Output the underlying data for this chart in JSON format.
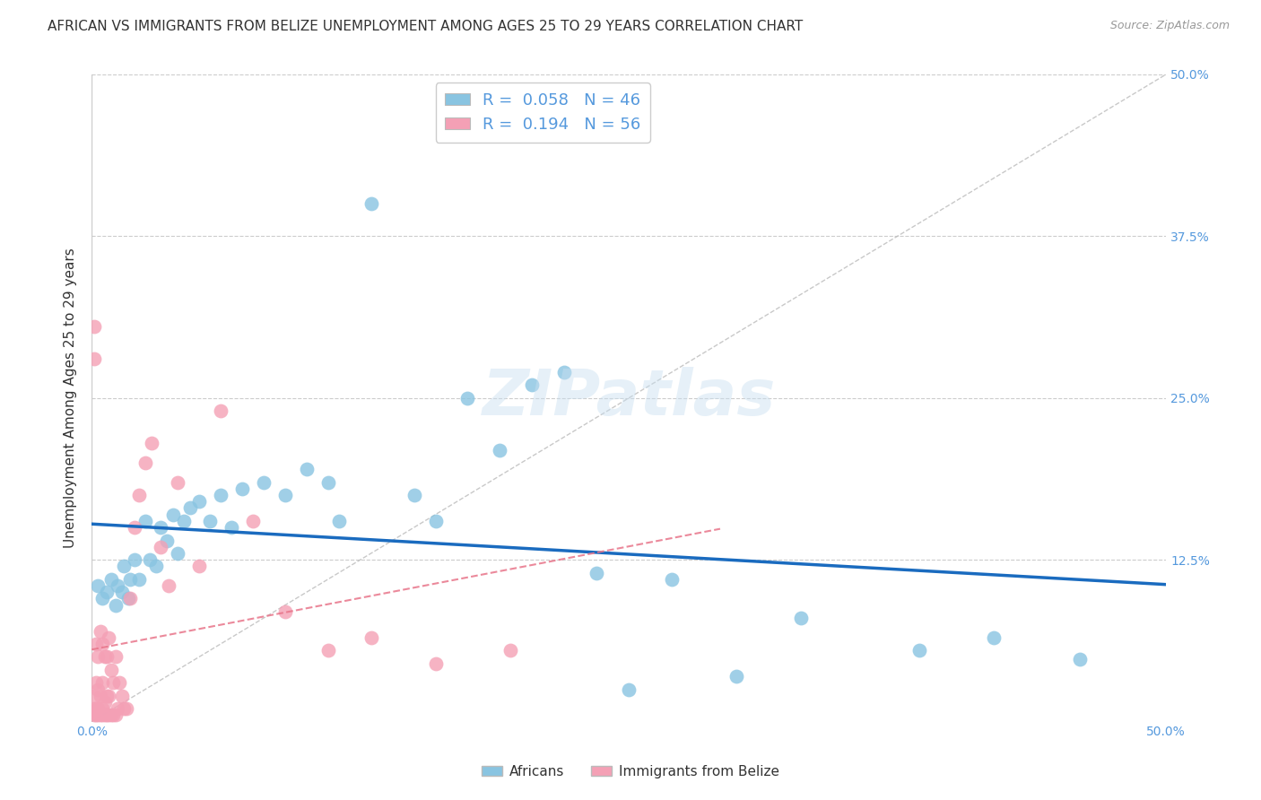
{
  "title": "AFRICAN VS IMMIGRANTS FROM BELIZE UNEMPLOYMENT AMONG AGES 25 TO 29 YEARS CORRELATION CHART",
  "source": "Source: ZipAtlas.com",
  "ylabel": "Unemployment Among Ages 25 to 29 years",
  "xmin": 0.0,
  "xmax": 0.5,
  "ymin": 0.0,
  "ymax": 0.5,
  "ytick_labels_right": [
    "12.5%",
    "25.0%",
    "37.5%",
    "50.0%"
  ],
  "ytick_vals_right": [
    0.125,
    0.25,
    0.375,
    0.5
  ],
  "legend_label1": "Africans",
  "legend_label2": "Immigrants from Belize",
  "legend_R1": "R =  0.058",
  "legend_N1": "N = 46",
  "legend_R2": "R =  0.194",
  "legend_N2": "N = 56",
  "color_africans": "#89c4e1",
  "color_belize": "#f4a0b5",
  "color_africans_line": "#1a6bbf",
  "color_belize_line": "#e8758a",
  "background_color": "#ffffff",
  "grid_color": "#cccccc",
  "title_fontsize": 11,
  "axis_label_fontsize": 11,
  "tick_fontsize": 10,
  "africans_x": [
    0.003,
    0.005,
    0.007,
    0.009,
    0.011,
    0.012,
    0.014,
    0.015,
    0.017,
    0.018,
    0.02,
    0.022,
    0.025,
    0.027,
    0.03,
    0.032,
    0.035,
    0.038,
    0.04,
    0.043,
    0.046,
    0.05,
    0.055,
    0.06,
    0.065,
    0.07,
    0.08,
    0.09,
    0.1,
    0.11,
    0.115,
    0.13,
    0.15,
    0.16,
    0.175,
    0.19,
    0.205,
    0.22,
    0.235,
    0.25,
    0.27,
    0.3,
    0.33,
    0.385,
    0.42,
    0.46
  ],
  "africans_y": [
    0.105,
    0.095,
    0.1,
    0.11,
    0.09,
    0.105,
    0.1,
    0.12,
    0.095,
    0.11,
    0.125,
    0.11,
    0.155,
    0.125,
    0.12,
    0.15,
    0.14,
    0.16,
    0.13,
    0.155,
    0.165,
    0.17,
    0.155,
    0.175,
    0.15,
    0.18,
    0.185,
    0.175,
    0.195,
    0.185,
    0.155,
    0.4,
    0.175,
    0.155,
    0.25,
    0.21,
    0.26,
    0.27,
    0.115,
    0.025,
    0.11,
    0.035,
    0.08,
    0.055,
    0.065,
    0.048
  ],
  "belize_x": [
    0.001,
    0.001,
    0.001,
    0.001,
    0.001,
    0.002,
    0.002,
    0.002,
    0.002,
    0.003,
    0.003,
    0.003,
    0.003,
    0.004,
    0.004,
    0.004,
    0.005,
    0.005,
    0.005,
    0.005,
    0.006,
    0.006,
    0.006,
    0.007,
    0.007,
    0.007,
    0.008,
    0.008,
    0.008,
    0.009,
    0.009,
    0.01,
    0.01,
    0.011,
    0.011,
    0.012,
    0.013,
    0.014,
    0.015,
    0.016,
    0.018,
    0.02,
    0.022,
    0.025,
    0.028,
    0.032,
    0.036,
    0.04,
    0.05,
    0.06,
    0.075,
    0.09,
    0.11,
    0.13,
    0.16,
    0.195
  ],
  "belize_y": [
    0.005,
    0.01,
    0.02,
    0.28,
    0.305,
    0.005,
    0.01,
    0.03,
    0.06,
    0.005,
    0.01,
    0.025,
    0.05,
    0.005,
    0.02,
    0.07,
    0.005,
    0.01,
    0.03,
    0.06,
    0.005,
    0.015,
    0.05,
    0.005,
    0.02,
    0.05,
    0.005,
    0.02,
    0.065,
    0.005,
    0.04,
    0.005,
    0.03,
    0.005,
    0.05,
    0.01,
    0.03,
    0.02,
    0.01,
    0.01,
    0.095,
    0.15,
    0.175,
    0.2,
    0.215,
    0.135,
    0.105,
    0.185,
    0.12,
    0.24,
    0.155,
    0.085,
    0.055,
    0.065,
    0.045,
    0.055
  ]
}
